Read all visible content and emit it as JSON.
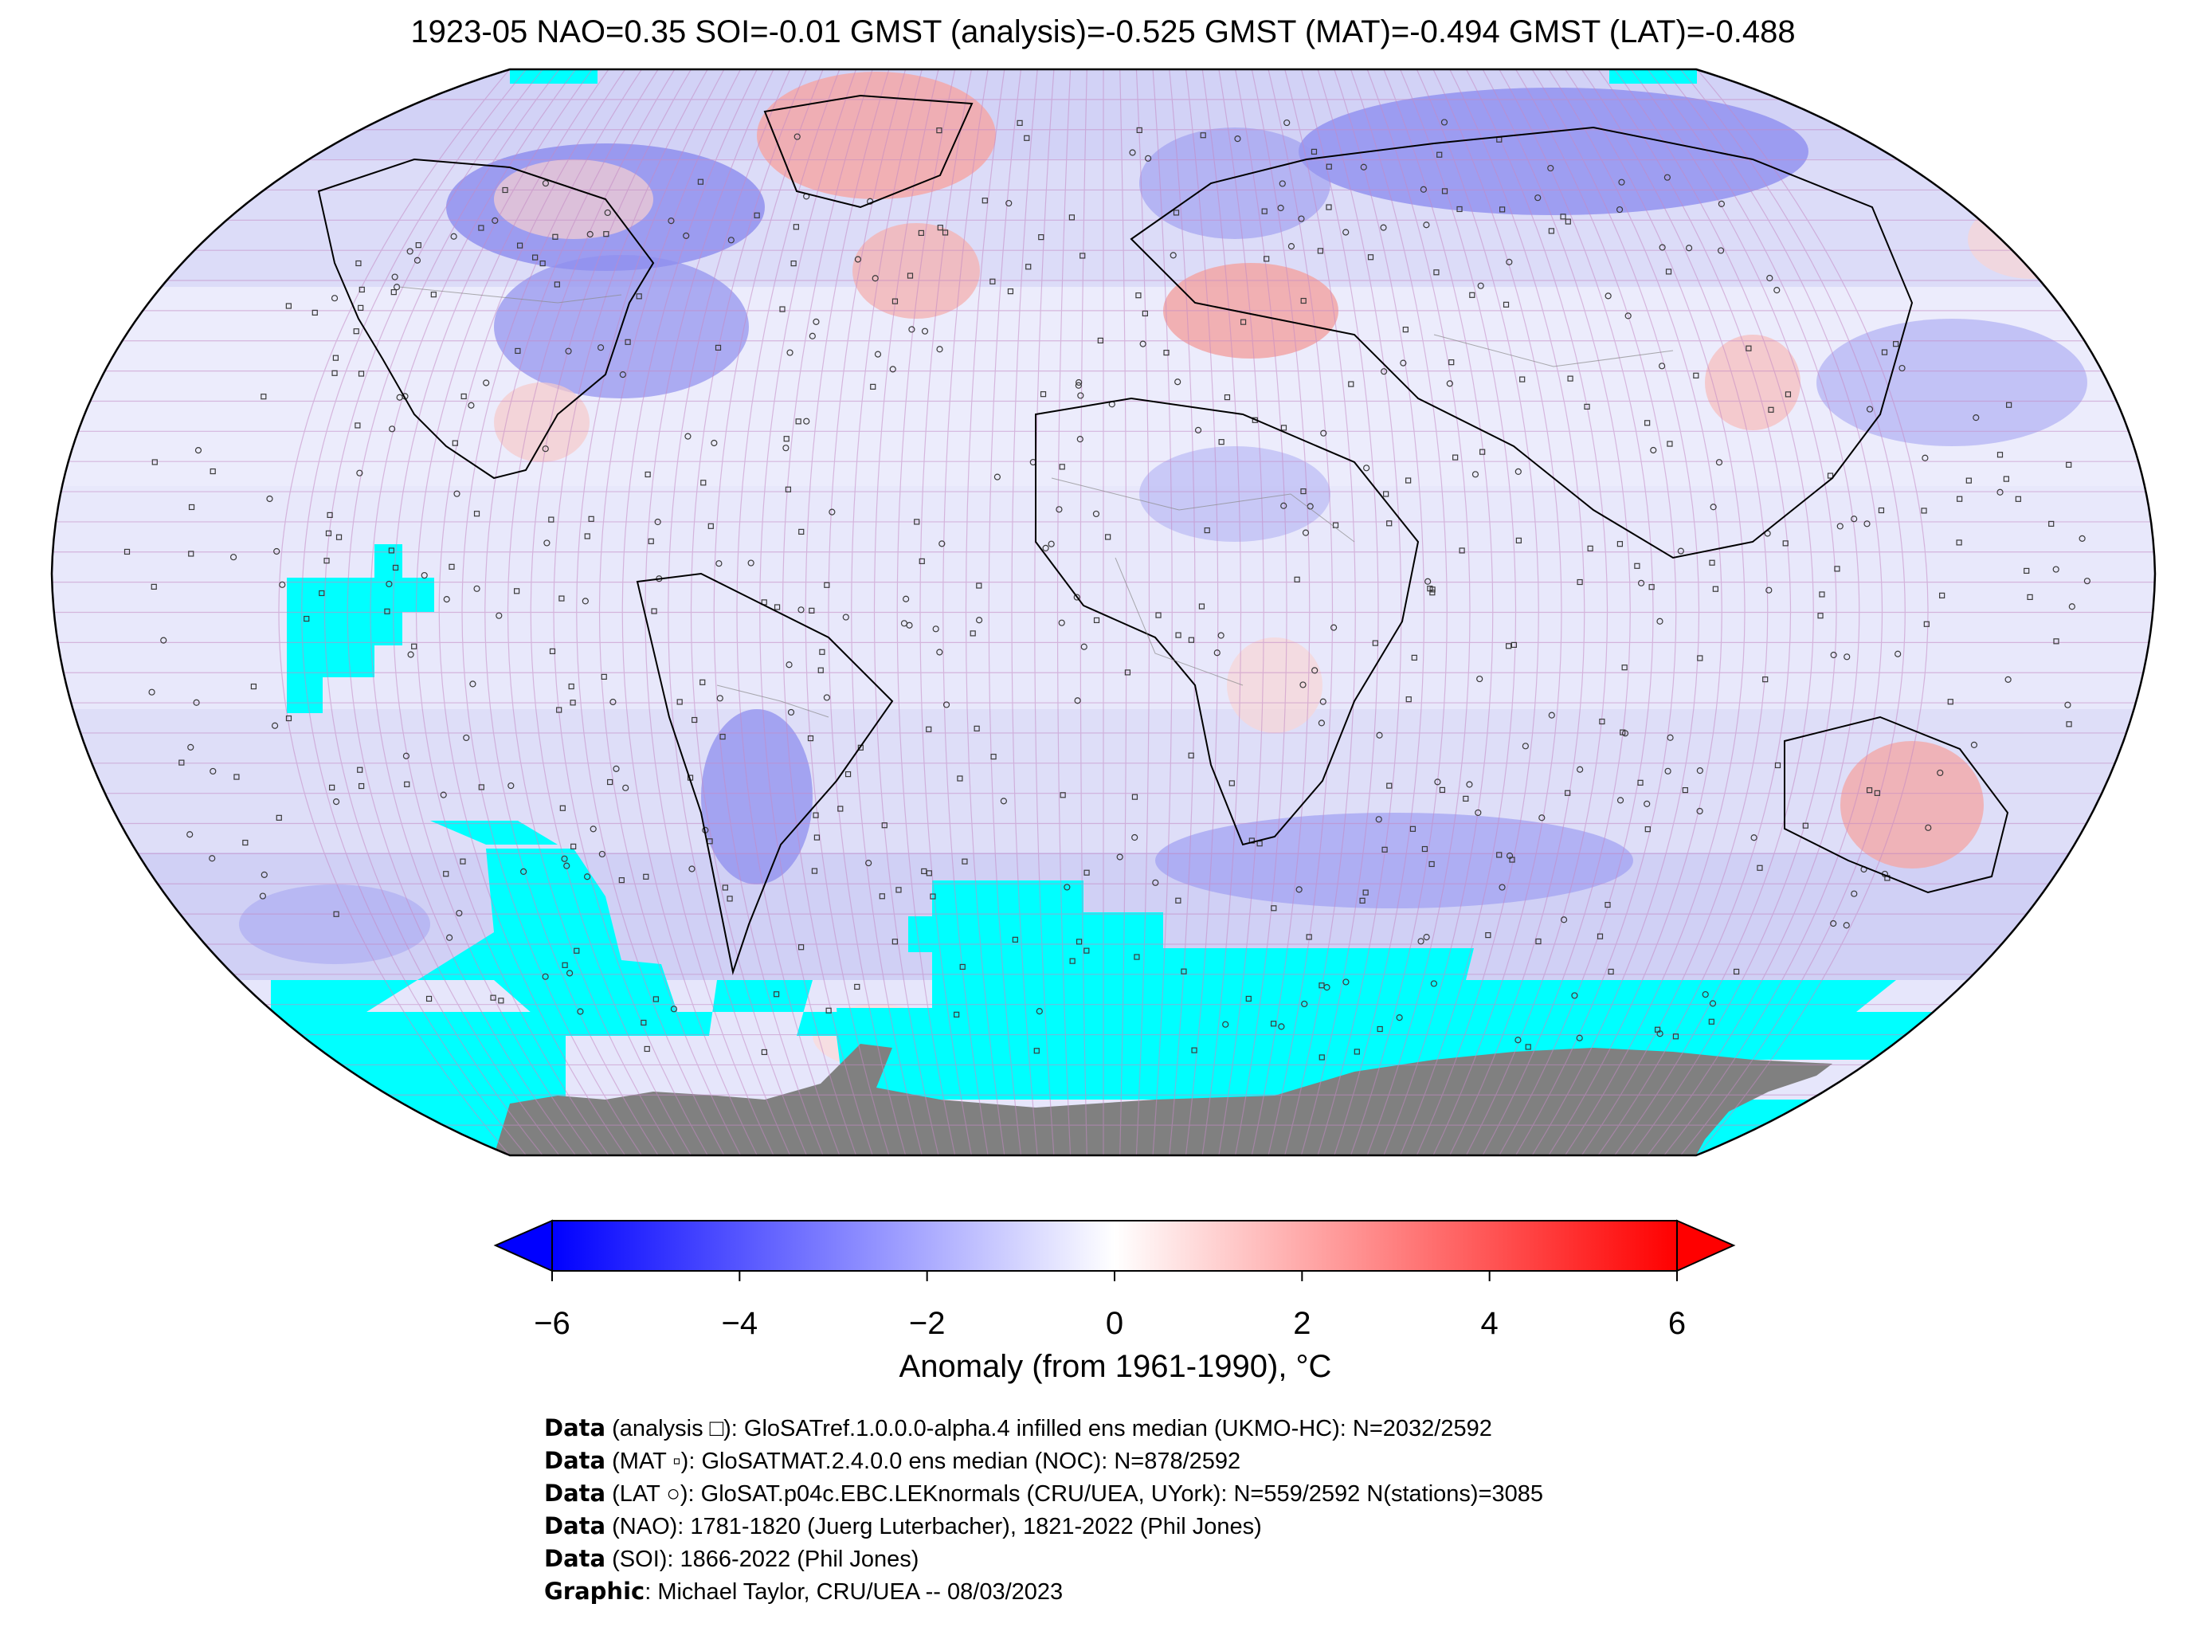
{
  "title": "1923-05 NAO=0.35 SOI=-0.01 GMST (analysis)=-0.525 GMST (MAT)=-0.494 GMST (LAT)=-0.488",
  "map": {
    "projection": "Robinson",
    "grid": "5-degree lat/lon cells",
    "land_mask_color": "#808080",
    "no_data_color": "#00ffff",
    "gridline_color": "#c080c0",
    "coastline_color": "#000000",
    "regions": {
      "cold_anomalies": [
        "Greenland/Baffin",
        "Eastern USA",
        "Siberia",
        "Northern Europe",
        "South America",
        "Southern Ocean Indian sector"
      ],
      "warm_anomalies": [
        "North Atlantic / Iceland",
        "Eastern Europe / Black Sea",
        "Eastern Australia",
        "Northern Pacific"
      ]
    }
  },
  "colorbar": {
    "label": "Anomaly (from 1961-1990), °C",
    "ticks": [
      "−6",
      "−4",
      "−2",
      "0",
      "2",
      "4",
      "6"
    ],
    "range": [
      -6,
      6
    ],
    "colormap": "bwr",
    "extend": "both",
    "low_color": "#0000ff",
    "high_color": "#ff0000"
  },
  "credits": [
    {
      "bold": "Data",
      "text": " (analysis □): GloSATref.1.0.0.0-alpha.4 infilled ens median (UKMO-HC): N=2032/2592"
    },
    {
      "bold": "Data",
      "text": " (MAT ▫): GloSATMAT.2.4.0.0 ens median (NOC): N=878/2592"
    },
    {
      "bold": "Data",
      "text": " (LAT ○): GloSAT.p04c.EBC.LEKnormals (CRU/UEA, UYork): N=559/2592 N(stations)=3085"
    },
    {
      "bold": "Data",
      "text": " (NAO): 1781-1820 (Juerg Luterbacher), 1821-2022 (Phil Jones)"
    },
    {
      "bold": "Data",
      "text": " (SOI): 1866-2022 (Phil Jones)"
    },
    {
      "bold": "Graphic",
      "text": ": Michael Taylor, CRU/UEA -- 08/03/2023"
    }
  ]
}
